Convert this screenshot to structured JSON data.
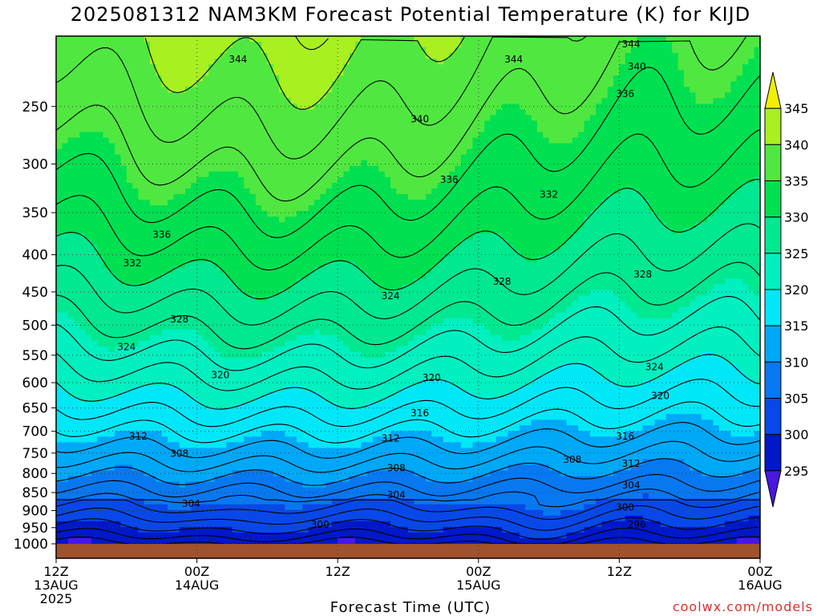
{
  "title": "2025081312 NAM3KM Forecast Potential Temperature (K) for KIJD",
  "watermark": "coolwx.com/models",
  "chart_data": {
    "type": "contour",
    "title": "2025081312 NAM3KM Forecast Potential Temperature (K) for KIJD",
    "xlabel": "Forecast Time (UTC)",
    "ylabel": "",
    "x_ticks": [
      {
        "hour": 0,
        "lines": [
          "12Z",
          "13AUG",
          "2025"
        ]
      },
      {
        "hour": 12,
        "lines": [
          "00Z",
          "14AUG"
        ]
      },
      {
        "hour": 24,
        "lines": [
          "12Z"
        ]
      },
      {
        "hour": 36,
        "lines": [
          "00Z",
          "15AUG"
        ]
      },
      {
        "hour": 48,
        "lines": [
          "12Z"
        ]
      },
      {
        "hour": 60,
        "lines": [
          "00Z",
          "16AUG"
        ]
      }
    ],
    "y_ticks": [
      250,
      300,
      350,
      400,
      450,
      500,
      550,
      600,
      650,
      700,
      750,
      800,
      850,
      900,
      950,
      1000
    ],
    "ylim": [
      200,
      1000
    ],
    "y_scale": "log",
    "colorbar": {
      "levels": [
        295,
        300,
        305,
        310,
        315,
        320,
        325,
        330,
        335,
        340,
        345
      ],
      "colors": [
        "#4818e0",
        "#0018c8",
        "#0848e8",
        "#0878f0",
        "#00a8f8",
        "#00e8f8",
        "#00f0c0",
        "#00e890",
        "#00e050",
        "#50e840",
        "#a8f020",
        "#f0f000"
      ]
    },
    "contour_labels": [
      {
        "value": 344,
        "hour": 15.5,
        "p": 215
      },
      {
        "value": 344,
        "hour": 39.0,
        "p": 215
      },
      {
        "value": 344,
        "hour": 49.0,
        "p": 205
      },
      {
        "value": 340,
        "hour": 49.5,
        "p": 220
      },
      {
        "value": 340,
        "hour": 31.0,
        "p": 260
      },
      {
        "value": 336,
        "hour": 48.5,
        "p": 240
      },
      {
        "value": 336,
        "hour": 33.5,
        "p": 315
      },
      {
        "value": 336,
        "hour": 9.0,
        "p": 375
      },
      {
        "value": 332,
        "hour": 42.0,
        "p": 330
      },
      {
        "value": 332,
        "hour": 6.5,
        "p": 410
      },
      {
        "value": 328,
        "hour": 50.0,
        "p": 425
      },
      {
        "value": 328,
        "hour": 38.0,
        "p": 435
      },
      {
        "value": 328,
        "hour": 10.5,
        "p": 490
      },
      {
        "value": 324,
        "hour": 28.5,
        "p": 455
      },
      {
        "value": 324,
        "hour": 6.0,
        "p": 535
      },
      {
        "value": 324,
        "hour": 51.0,
        "p": 570
      },
      {
        "value": 320,
        "hour": 14.0,
        "p": 585
      },
      {
        "value": 320,
        "hour": 32.0,
        "p": 590
      },
      {
        "value": 320,
        "hour": 51.5,
        "p": 625
      },
      {
        "value": 316,
        "hour": 31.0,
        "p": 660
      },
      {
        "value": 316,
        "hour": 48.5,
        "p": 710
      },
      {
        "value": 312,
        "hour": 7.0,
        "p": 710
      },
      {
        "value": 312,
        "hour": 28.5,
        "p": 715
      },
      {
        "value": 312,
        "hour": 49.0,
        "p": 775
      },
      {
        "value": 308,
        "hour": 10.5,
        "p": 750
      },
      {
        "value": 308,
        "hour": 29.0,
        "p": 785
      },
      {
        "value": 308,
        "hour": 44.0,
        "p": 765
      },
      {
        "value": 304,
        "hour": 11.5,
        "p": 880
      },
      {
        "value": 304,
        "hour": 29.0,
        "p": 855
      },
      {
        "value": 304,
        "hour": 49.0,
        "p": 830
      },
      {
        "value": 300,
        "hour": 22.5,
        "p": 940
      },
      {
        "value": 300,
        "hour": 48.5,
        "p": 890
      },
      {
        "value": 296,
        "hour": 49.5,
        "p": 940
      }
    ],
    "grid": true,
    "ground_color": "#a0522d"
  }
}
